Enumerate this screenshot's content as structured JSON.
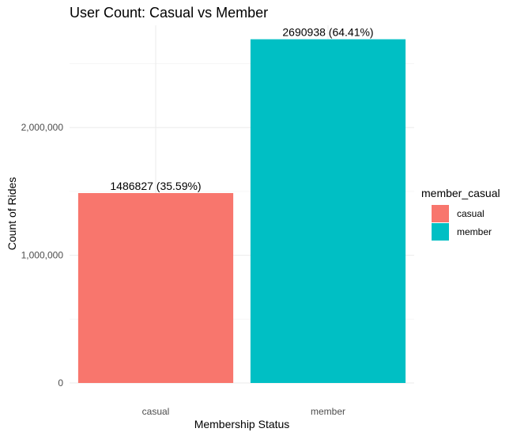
{
  "chart_data": {
    "type": "bar",
    "title": "User Count: Casual vs Member",
    "xlabel": "Membership Status",
    "ylabel": "Count of Rides",
    "categories": [
      "casual",
      "member"
    ],
    "values": [
      1486827,
      2690938
    ],
    "data_labels": [
      "1486827 (35.59%)",
      "2690938 (64.41%)"
    ],
    "colors": [
      "#F8766D",
      "#00BFC4"
    ],
    "ylim": [
      0,
      2800000
    ],
    "y_ticks": [
      0,
      1000000,
      2000000
    ],
    "y_tick_labels": [
      "0",
      "1,000,000",
      "2,000,000"
    ],
    "grid": true,
    "legend": {
      "title": "member_casual",
      "position": "right",
      "entries": [
        "casual",
        "member"
      ]
    }
  }
}
